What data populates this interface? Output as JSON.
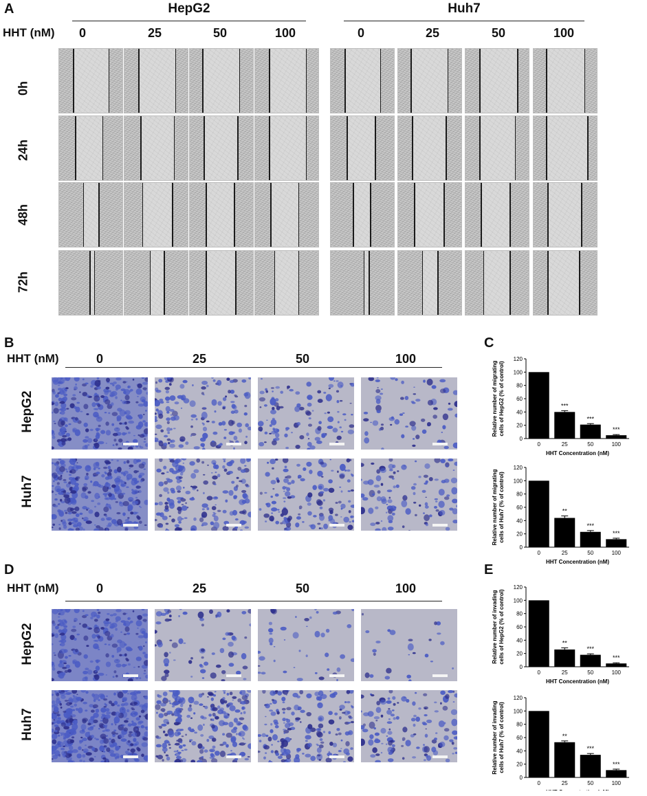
{
  "panel_labels": {
    "a": "A",
    "b": "B",
    "c": "C",
    "d": "D",
    "e": "E"
  },
  "panelA": {
    "cell_lines": [
      "HepG2",
      "Huh7"
    ],
    "hht_label": "HHT (nM)",
    "concentrations": [
      "0",
      "25",
      "50",
      "100"
    ],
    "timepoints": [
      "0h",
      "24h",
      "48h",
      "72h"
    ]
  },
  "panelB": {
    "hht_label": "HHT (nM)",
    "concentrations": [
      "0",
      "25",
      "50",
      "100"
    ],
    "rows": [
      "HepG2",
      "Huh7"
    ]
  },
  "panelD": {
    "hht_label": "HHT (nM)",
    "concentrations": [
      "0",
      "25",
      "50",
      "100"
    ],
    "rows": [
      "HepG2",
      "Huh7"
    ]
  },
  "colors": {
    "bar": "#000000",
    "stain_blue": "#4a5bc4",
    "stain_dark": "#2d2f8c"
  },
  "chart_data": [
    {
      "type": "bar",
      "panel": "C",
      "categories": [
        "0",
        "25",
        "50",
        "100"
      ],
      "values": [
        100,
        40,
        21,
        5
      ],
      "errors": [
        0,
        2,
        1.5,
        1
      ],
      "significance": [
        "",
        "***",
        "***",
        "***"
      ],
      "ylabel": "Relative number of migrating cells of HepG2 (% of control)",
      "ylabel_lines": [
        "Relative number of migrating",
        "cells of HepG2 (% of control)"
      ],
      "xlabel": "HHT Concentration (nM)",
      "ylim": [
        0,
        120
      ],
      "yticks": [
        "0",
        "20",
        "40",
        "60",
        "80",
        "100",
        "120"
      ]
    },
    {
      "type": "bar",
      "panel": "C",
      "categories": [
        "0",
        "25",
        "50",
        "100"
      ],
      "values": [
        100,
        44,
        23,
        12
      ],
      "errors": [
        0,
        3,
        2,
        1.5
      ],
      "significance": [
        "",
        "**",
        "***",
        "***"
      ],
      "ylabel": "Relative number of migrating cells of Huh7 (% of control)",
      "ylabel_lines": [
        "Relative number of migrating",
        "cells of Huh7 (% of control)"
      ],
      "xlabel": "HHT Concentration (nM)",
      "ylim": [
        0,
        120
      ],
      "yticks": [
        "0",
        "20",
        "40",
        "60",
        "80",
        "100",
        "120"
      ]
    },
    {
      "type": "bar",
      "panel": "E",
      "categories": [
        "0",
        "25",
        "50",
        "100"
      ],
      "values": [
        100,
        26,
        18,
        5
      ],
      "errors": [
        0,
        2.5,
        1.5,
        1
      ],
      "significance": [
        "",
        "**",
        "***",
        "***"
      ],
      "ylabel": "Relative number of invading cells of HepG2 (% of control)",
      "ylabel_lines": [
        "Relative number of invading",
        "cells of HepG2 (% of control)"
      ],
      "xlabel": "HHT Concentration (nM)",
      "ylim": [
        0,
        120
      ],
      "yticks": [
        "0",
        "20",
        "40",
        "60",
        "80",
        "100",
        "120"
      ]
    },
    {
      "type": "bar",
      "panel": "E",
      "categories": [
        "0",
        "25",
        "50",
        "100"
      ],
      "values": [
        100,
        53,
        34,
        11
      ],
      "errors": [
        0,
        2,
        2,
        1.5
      ],
      "significance": [
        "",
        "**",
        "***",
        "***"
      ],
      "ylabel": "Relative number of invading cells of Huh7 (% of control)",
      "ylabel_lines": [
        "Relative number of invading",
        "cells of Huh7 (% of control)"
      ],
      "xlabel": "HHT Concentration (nM)",
      "ylim": [
        0,
        120
      ],
      "yticks": [
        "0",
        "20",
        "40",
        "60",
        "80",
        "100",
        "120"
      ]
    }
  ]
}
